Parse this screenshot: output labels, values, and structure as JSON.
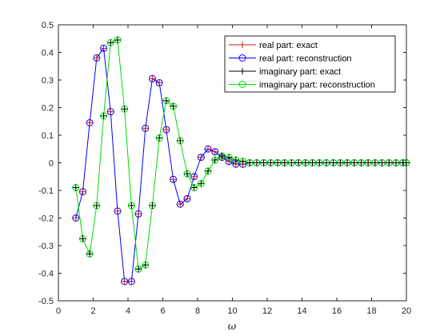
{
  "chart_data": {
    "type": "line",
    "title": "",
    "xlabel": "ω",
    "ylabel": "",
    "xlim": [
      0,
      20
    ],
    "ylim": [
      -0.5,
      0.5
    ],
    "xticks": [
      "0",
      "2",
      "4",
      "6",
      "8",
      "10",
      "12",
      "14",
      "16",
      "18",
      "20"
    ],
    "yticks": [
      "-0.5",
      "-0.4",
      "-0.3",
      "-0.2",
      "-0.1",
      "0",
      "0.1",
      "0.2",
      "0.3",
      "0.4",
      "0.5"
    ],
    "grid": false,
    "legend_position": "top-right",
    "x": [
      1.0,
      1.4,
      1.8,
      2.2,
      2.6,
      3.0,
      3.4,
      3.8,
      4.2,
      4.6,
      5.0,
      5.4,
      5.8,
      6.2,
      6.6,
      7.0,
      7.4,
      7.8,
      8.2,
      8.6,
      9.0,
      9.4,
      9.8,
      10.2,
      10.6,
      11.0,
      11.4,
      11.8,
      12.2,
      12.6,
      13.0,
      13.4,
      13.8,
      14.2,
      14.6,
      15.0,
      15.4,
      15.8,
      16.2,
      16.6,
      17.0,
      17.4,
      17.8,
      18.2,
      18.6,
      19.0,
      19.4,
      19.8,
      20.0
    ],
    "series": [
      {
        "name": "real part: exact",
        "color": "#cc1a1a",
        "line": false,
        "marker": "plus",
        "values": [
          -0.2,
          -0.105,
          0.145,
          0.38,
          0.415,
          0.185,
          -0.175,
          -0.43,
          -0.43,
          -0.185,
          0.125,
          0.305,
          0.29,
          0.12,
          -0.06,
          -0.15,
          -0.13,
          -0.05,
          0.02,
          0.05,
          0.04,
          0.02,
          0.005,
          -0.005,
          -0.005,
          0.0,
          0.0,
          0.0,
          0.0,
          0.0,
          0.0,
          0.0,
          0.0,
          0.0,
          0.0,
          0.0,
          0.0,
          0.0,
          0.0,
          0.0,
          0.0,
          0.0,
          0.0,
          0.0,
          0.0,
          0.0,
          0.0,
          0.0,
          0.0
        ]
      },
      {
        "name": "real part: reconstruction",
        "color": "#0000ff",
        "line": true,
        "marker": "circle",
        "values": [
          -0.2,
          -0.105,
          0.145,
          0.38,
          0.415,
          0.185,
          -0.175,
          -0.43,
          -0.43,
          -0.185,
          0.125,
          0.305,
          0.29,
          0.12,
          -0.06,
          -0.15,
          -0.13,
          -0.05,
          0.02,
          0.05,
          0.04,
          0.02,
          0.005,
          -0.005,
          -0.005,
          0.0,
          0.0,
          0.0,
          0.0,
          0.0,
          0.0,
          0.0,
          0.0,
          0.0,
          0.0,
          0.0,
          0.0,
          0.0,
          0.0,
          0.0,
          0.0,
          0.0,
          0.0,
          0.0,
          0.0,
          0.0,
          0.0,
          0.0,
          0.0
        ]
      },
      {
        "name": "imaginary part: exact",
        "color": "#000000",
        "line": false,
        "marker": "plus",
        "values": [
          -0.09,
          -0.275,
          -0.33,
          -0.155,
          0.17,
          0.435,
          0.445,
          0.195,
          -0.155,
          -0.385,
          -0.37,
          -0.155,
          0.09,
          0.225,
          0.205,
          0.08,
          -0.04,
          -0.09,
          -0.075,
          -0.03,
          0.01,
          0.025,
          0.02,
          0.01,
          0.005,
          0.0,
          0.0,
          0.0,
          0.0,
          0.0,
          0.0,
          0.0,
          0.0,
          0.0,
          0.0,
          0.0,
          0.0,
          0.0,
          0.0,
          0.0,
          0.0,
          0.0,
          0.0,
          0.0,
          0.0,
          0.0,
          0.0,
          0.0,
          0.0
        ]
      },
      {
        "name": "imaginary part: reconstruction",
        "color": "#00dd00",
        "line": true,
        "marker": "circle",
        "values": [
          -0.09,
          -0.275,
          -0.33,
          -0.155,
          0.17,
          0.435,
          0.445,
          0.195,
          -0.155,
          -0.385,
          -0.37,
          -0.155,
          0.09,
          0.225,
          0.205,
          0.08,
          -0.04,
          -0.09,
          -0.075,
          -0.03,
          0.01,
          0.025,
          0.02,
          0.01,
          0.005,
          0.0,
          0.0,
          0.0,
          0.0,
          0.0,
          0.0,
          0.0,
          0.0,
          0.0,
          0.0,
          0.0,
          0.0,
          0.0,
          0.0,
          0.0,
          0.0,
          0.0,
          0.0,
          0.0,
          0.0,
          0.0,
          0.0,
          0.0,
          0.0
        ]
      }
    ]
  }
}
